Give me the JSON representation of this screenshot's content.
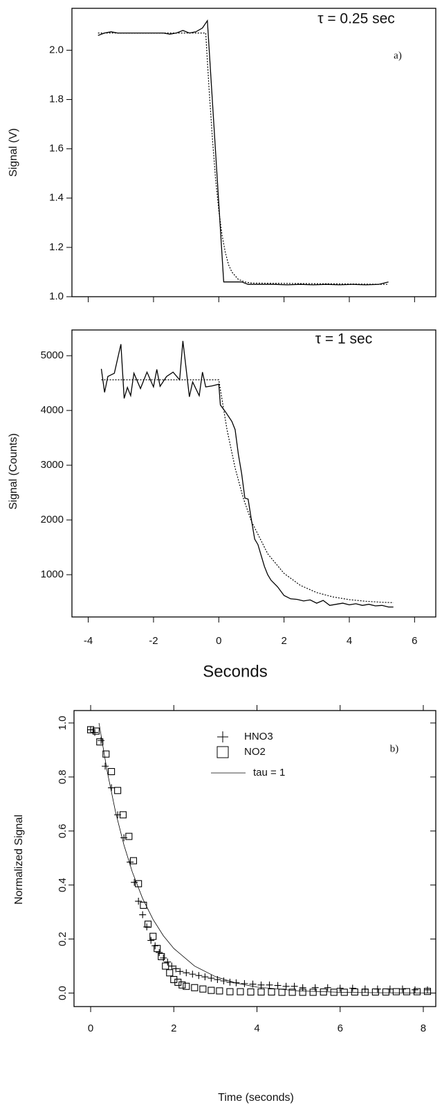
{
  "chart_data": [
    {
      "type": "line",
      "y_label": "Signal (V)",
      "annotations": [
        "τ = 0.25 sec",
        "a)"
      ],
      "xlim": [
        -4.5,
        6.65
      ],
      "ylim": [
        1.0,
        2.17
      ],
      "yticks": [
        {
          "value": 1.0,
          "label": "1.0"
        },
        1.2,
        1.4,
        1.6,
        1.8,
        {
          "value": 2.0,
          "label": "2.0"
        }
      ],
      "series": [
        {
          "color": "#000000",
          "dash": "solid",
          "x": [
            -3.7,
            -3.5,
            -3.3,
            -3.1,
            -2.9,
            -2.7,
            -2.5,
            -2.3,
            -2.1,
            -1.9,
            -1.7,
            -1.5,
            -1.3,
            -1.1,
            -0.9,
            -0.7,
            -0.5,
            -0.35,
            0.15,
            0.7,
            0.9,
            1.3,
            1.7,
            2.1,
            2.5,
            2.9,
            3.3,
            3.7,
            4.1,
            4.5,
            4.9,
            5.2
          ],
          "values": [
            2.06,
            2.07,
            2.075,
            2.07,
            2.07,
            2.07,
            2.07,
            2.07,
            2.07,
            2.07,
            2.07,
            2.065,
            2.07,
            2.08,
            2.07,
            2.075,
            2.09,
            2.12,
            1.06,
            1.06,
            1.05,
            1.05,
            1.05,
            1.048,
            1.05,
            1.048,
            1.05,
            1.048,
            1.05,
            1.048,
            1.05,
            1.06
          ]
        },
        {
          "color": "#000000",
          "dash": "dotted",
          "x": [
            -3.7,
            -0.4,
            -0.3,
            -0.2,
            -0.1,
            0,
            0.1,
            0.2,
            0.3,
            0.4,
            0.6,
            0.8,
            1.0,
            5.2
          ],
          "values": [
            2.07,
            2.07,
            1.85,
            1.65,
            1.48,
            1.35,
            1.25,
            1.18,
            1.13,
            1.1,
            1.07,
            1.06,
            1.055,
            1.05
          ]
        }
      ]
    },
    {
      "type": "line",
      "y_label": "Signal (Counts)",
      "x_label": "Seconds",
      "annotations": [
        "τ = 1 sec"
      ],
      "xlim": [
        -4.5,
        6.65
      ],
      "ylim": [
        228,
        5470
      ],
      "xticks": [
        -4,
        -2,
        0,
        2,
        4,
        6
      ],
      "yticks": [
        1000,
        2000,
        3000,
        4000,
        5000
      ],
      "series": [
        {
          "color": "#000000",
          "dash": "solid",
          "x": [
            -3.6,
            -3.5,
            -3.4,
            -3.2,
            -3.0,
            -2.9,
            -2.8,
            -2.7,
            -2.6,
            -2.4,
            -2.2,
            -2.0,
            -1.9,
            -1.8,
            -1.6,
            -1.4,
            -1.2,
            -1.1,
            -0.9,
            -0.8,
            -0.6,
            -0.5,
            -0.4,
            -0.2,
            0.0,
            0.05,
            0.2,
            0.4,
            0.5,
            0.6,
            0.7,
            0.8,
            0.9,
            1.0,
            1.1,
            1.2,
            1.3,
            1.4,
            1.5,
            1.6,
            1.8,
            2.0,
            2.2,
            2.4,
            2.6,
            2.8,
            3.0,
            3.2,
            3.4,
            3.6,
            3.8,
            4.0,
            4.2,
            4.4,
            4.6,
            4.8,
            5.0,
            5.2,
            5.35
          ],
          "values": [
            4760,
            4330,
            4620,
            4680,
            5210,
            4220,
            4420,
            4270,
            4680,
            4400,
            4700,
            4430,
            4750,
            4440,
            4620,
            4700,
            4560,
            5270,
            4250,
            4520,
            4270,
            4700,
            4430,
            4450,
            4480,
            4100,
            3980,
            3800,
            3650,
            3200,
            2850,
            2400,
            2380,
            2000,
            1650,
            1550,
            1350,
            1150,
            1000,
            900,
            780,
            620,
            560,
            550,
            520,
            540,
            480,
            530,
            440,
            460,
            480,
            450,
            470,
            440,
            460,
            430,
            440,
            410,
            410
          ]
        },
        {
          "color": "#000000",
          "dash": "dotted",
          "x": [
            -3.6,
            0,
            0.25,
            0.5,
            0.75,
            1,
            1.5,
            2,
            2.5,
            3,
            3.5,
            4,
            4.5,
            5,
            5.35
          ],
          "values": [
            4560,
            4560,
            3655,
            2950,
            2400,
            1975,
            1383,
            1024,
            806,
            674,
            594,
            545,
            515,
            497,
            490
          ]
        }
      ]
    },
    {
      "type": "scatter",
      "y_label": "Normalized Signal",
      "x_label": "Time (seconds)",
      "annotations": [
        "b)"
      ],
      "legend": true,
      "xlim": [
        -0.4,
        8.3
      ],
      "ylim": [
        -0.05,
        1.046
      ],
      "xticks": [
        0,
        2,
        4,
        6,
        8
      ],
      "yticks": [
        {
          "value": 0.0,
          "label": "0.0"
        },
        0.2,
        0.4,
        0.6,
        0.8,
        {
          "value": 1.0,
          "label": "1.0"
        }
      ],
      "series": [
        {
          "name": "HNO3",
          "marker": "plus",
          "color": "#000000",
          "x": [
            0,
            0.1,
            0.25,
            0.35,
            0.5,
            0.65,
            0.8,
            0.95,
            1.05,
            1.15,
            1.25,
            1.35,
            1.45,
            1.55,
            1.65,
            1.75,
            1.85,
            1.95,
            2.05,
            2.15,
            2.3,
            2.45,
            2.6,
            2.75,
            2.9,
            3.05,
            3.2,
            3.35,
            3.5,
            3.7,
            3.9,
            4.1,
            4.3,
            4.5,
            4.7,
            4.9,
            5.1,
            5.4,
            5.7,
            6.0,
            6.3,
            6.6,
            6.9,
            7.2,
            7.5,
            7.8,
            8.1
          ],
          "values": [
            0.975,
            0.965,
            0.935,
            0.84,
            0.76,
            0.66,
            0.575,
            0.485,
            0.41,
            0.34,
            0.29,
            0.245,
            0.195,
            0.175,
            0.15,
            0.13,
            0.115,
            0.1,
            0.09,
            0.08,
            0.075,
            0.07,
            0.065,
            0.06,
            0.055,
            0.05,
            0.045,
            0.04,
            0.038,
            0.035,
            0.033,
            0.03,
            0.03,
            0.028,
            0.025,
            0.025,
            0.02,
            0.02,
            0.02,
            0.018,
            0.018,
            0.015,
            0.015,
            0.015,
            0.015,
            0.012,
            0.012
          ]
        },
        {
          "name": "NO2",
          "marker": "square",
          "color": "#000000",
          "x": [
            0,
            0.13,
            0.22,
            0.37,
            0.5,
            0.65,
            0.78,
            0.92,
            1.03,
            1.15,
            1.27,
            1.38,
            1.5,
            1.6,
            1.7,
            1.8,
            1.9,
            2.0,
            2.1,
            2.2,
            2.3,
            2.5,
            2.7,
            2.9,
            3.1,
            3.35,
            3.6,
            3.85,
            4.1,
            4.35,
            4.6,
            4.85,
            5.1,
            5.35,
            5.6,
            5.85,
            6.1,
            6.35,
            6.6,
            6.85,
            7.1,
            7.35,
            7.6,
            7.85,
            8.1
          ],
          "values": [
            0.975,
            0.97,
            0.93,
            0.885,
            0.82,
            0.75,
            0.66,
            0.58,
            0.49,
            0.405,
            0.325,
            0.255,
            0.21,
            0.165,
            0.135,
            0.1,
            0.075,
            0.05,
            0.04,
            0.03,
            0.025,
            0.02,
            0.015,
            0.01,
            0.008,
            0.005,
            0.005,
            0.004,
            0.004,
            0.004,
            0.003,
            0.003,
            0.003,
            0.003,
            0.004,
            0.003,
            0.003,
            0.004,
            0.003,
            0.004,
            0.004,
            0.005,
            0.005,
            0.005,
            0.006
          ]
        },
        {
          "name": "tau = 1",
          "marker": "none",
          "color": "#000000",
          "x": [
            0.2,
            0.4,
            0.6,
            0.8,
            1.0,
            1.25,
            1.5,
            1.75,
            2.0,
            2.5,
            3.0,
            3.5,
            4.0,
            5.0,
            6.0,
            7.0,
            8.3
          ],
          "values": [
            1.0,
            0.819,
            0.67,
            0.549,
            0.449,
            0.35,
            0.273,
            0.212,
            0.165,
            0.1,
            0.061,
            0.037,
            0.022,
            0.008,
            0.003,
            0.001,
            0.0003
          ]
        }
      ]
    }
  ]
}
